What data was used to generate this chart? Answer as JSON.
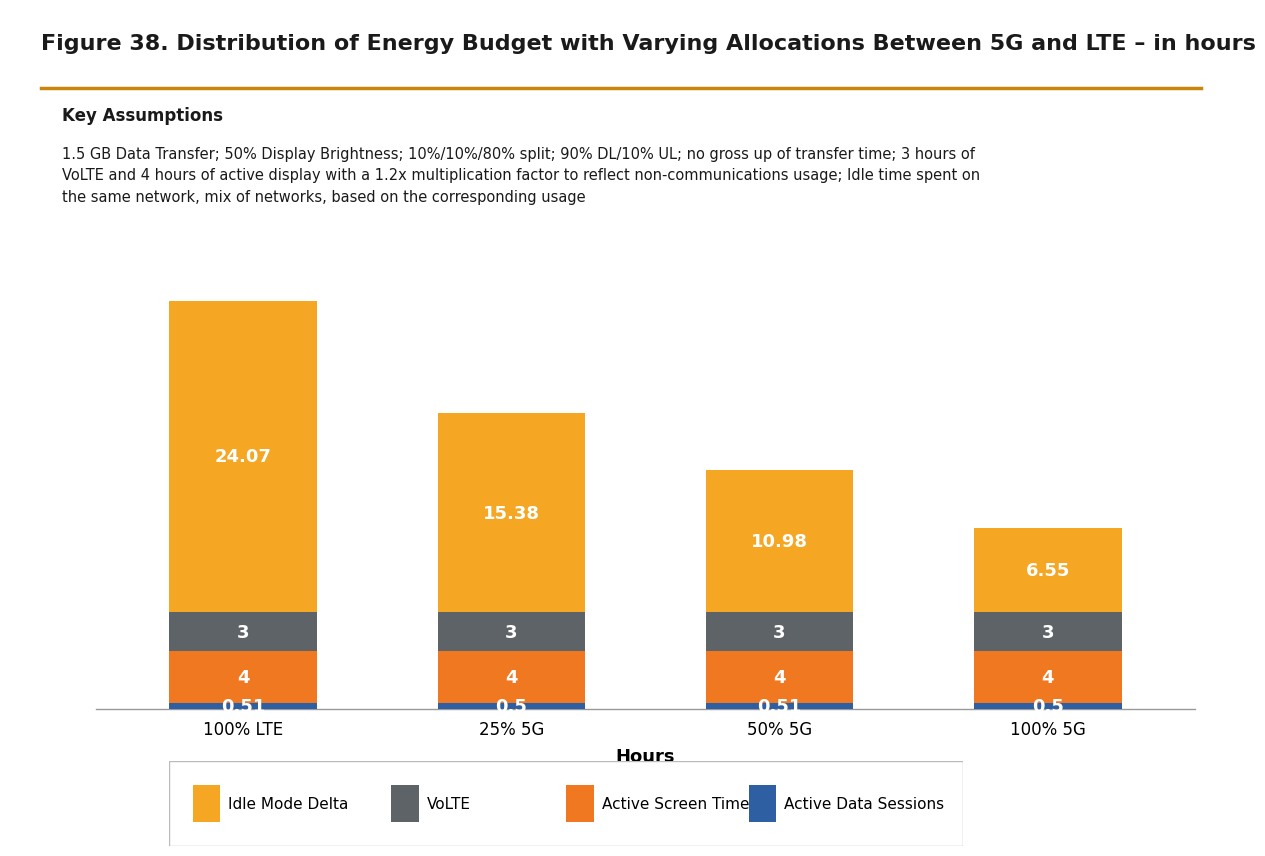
{
  "title": "Figure 38. Distribution of Energy Budget with Varying Allocations Between 5G and LTE – in hours",
  "key_assumptions_title": "Key Assumptions",
  "key_assumptions_text": "1.5 GB Data Transfer; 50% Display Brightness; 10%/10%/80% split; 90% DL/10% UL; no gross up of transfer time; 3 hours of\nVoLTE and 4 hours of active display with a 1.2x multiplication factor to reflect non-communications usage; Idle time spent on\nthe same network, mix of networks, based on the corresponding usage",
  "categories": [
    "100% LTE",
    "25% 5G",
    "50% 5G",
    "100% 5G"
  ],
  "series": [
    {
      "name": "Active Data Sessions",
      "values": [
        0.51,
        0.5,
        0.51,
        0.5
      ],
      "color": "#2e5fa3"
    },
    {
      "name": "Active Screen Time",
      "values": [
        4,
        4,
        4,
        4
      ],
      "color": "#f07820"
    },
    {
      "name": "VoLTE",
      "values": [
        3,
        3,
        3,
        3
      ],
      "color": "#5e6368"
    },
    {
      "name": "Idle Mode Delta",
      "values": [
        24.07,
        15.38,
        10.98,
        6.55
      ],
      "color": "#f5a623"
    }
  ],
  "xlabel": "Hours",
  "bar_width": 0.55,
  "ylim": [
    0,
    33
  ],
  "bg_color": "#ffffff",
  "assumptions_bg": "#e0e0e0",
  "title_color": "#1a1a1a",
  "title_line_color": "#c8860a",
  "xlabel_fontsize": 13,
  "title_fontsize": 16,
  "label_fontsize": 13,
  "legend_fontsize": 11,
  "tick_fontsize": 12
}
